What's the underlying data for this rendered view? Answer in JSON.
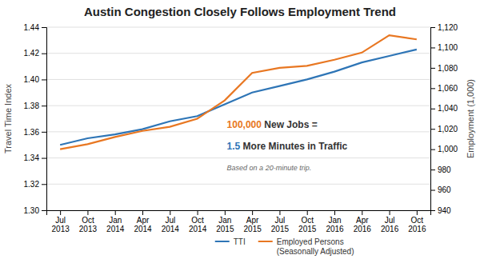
{
  "chart_data": {
    "type": "line",
    "title": "Austin Congestion Closely Follows Employment Trend",
    "ylabel": "Travel Time Index",
    "y2label": "Employment (1,000)",
    "categories": [
      "Jul\n2013",
      "Oct\n2013",
      "Jan\n2014",
      "Apr\n2014",
      "Jul\n2014",
      "Oct\n2014",
      "Jan\n2015",
      "Apr\n2015",
      "Jul\n2015",
      "Oct\n2015",
      "Jan\n2016",
      "Apr\n2016",
      "Jul\n2016",
      "Oct\n2016"
    ],
    "series": [
      {
        "name": "TTI",
        "color": "#2E75B6",
        "values": [
          1.35,
          1.355,
          1.358,
          1.362,
          1.368,
          1.372,
          1.381,
          1.39,
          1.395,
          1.4,
          1.406,
          1.413,
          1.418,
          1.423
        ]
      },
      {
        "name": "Employed Persons\n(Seasonally Adjusted)",
        "color": "#E87722",
        "axis": "y2",
        "values": [
          1000,
          1005,
          1012,
          1018,
          1022,
          1030,
          1048,
          1075,
          1080,
          1082,
          1088,
          1095,
          1112,
          1108
        ]
      }
    ],
    "ylim": [
      1.3,
      1.44
    ],
    "yticks": [
      {
        "value": 1.3,
        "label": "1.30"
      },
      1.32,
      1.34,
      1.36,
      1.38,
      {
        "value": 1.4,
        "label": "1.40"
      },
      1.42,
      1.44
    ],
    "y2lim": [
      940,
      1120
    ],
    "y2ticks": [
      940,
      960,
      980,
      {
        "value": 1000,
        "label": "1,000"
      },
      {
        "value": 1020,
        "label": "1,020"
      },
      {
        "value": 1040,
        "label": "1,040"
      },
      {
        "value": 1060,
        "label": "1,060"
      },
      {
        "value": 1080,
        "label": "1,080"
      },
      {
        "value": 1100,
        "label": "1,100"
      },
      {
        "value": 1120,
        "label": "1,120"
      }
    ],
    "grid": true,
    "legend": "bottom",
    "annotations": [
      {
        "parts": [
          {
            "text": "100,000",
            "color": "#E87722"
          },
          {
            "text": " New Jobs =",
            "color": "#333333"
          }
        ]
      },
      {
        "parts": [
          {
            "text": "1.5",
            "color": "#2E75B6"
          },
          {
            "text": " More Minutes in Traffic",
            "color": "#333333"
          }
        ]
      },
      {
        "parts": [
          {
            "text": "Based on a 20-minute trip.",
            "color": "#666666"
          }
        ]
      }
    ]
  }
}
